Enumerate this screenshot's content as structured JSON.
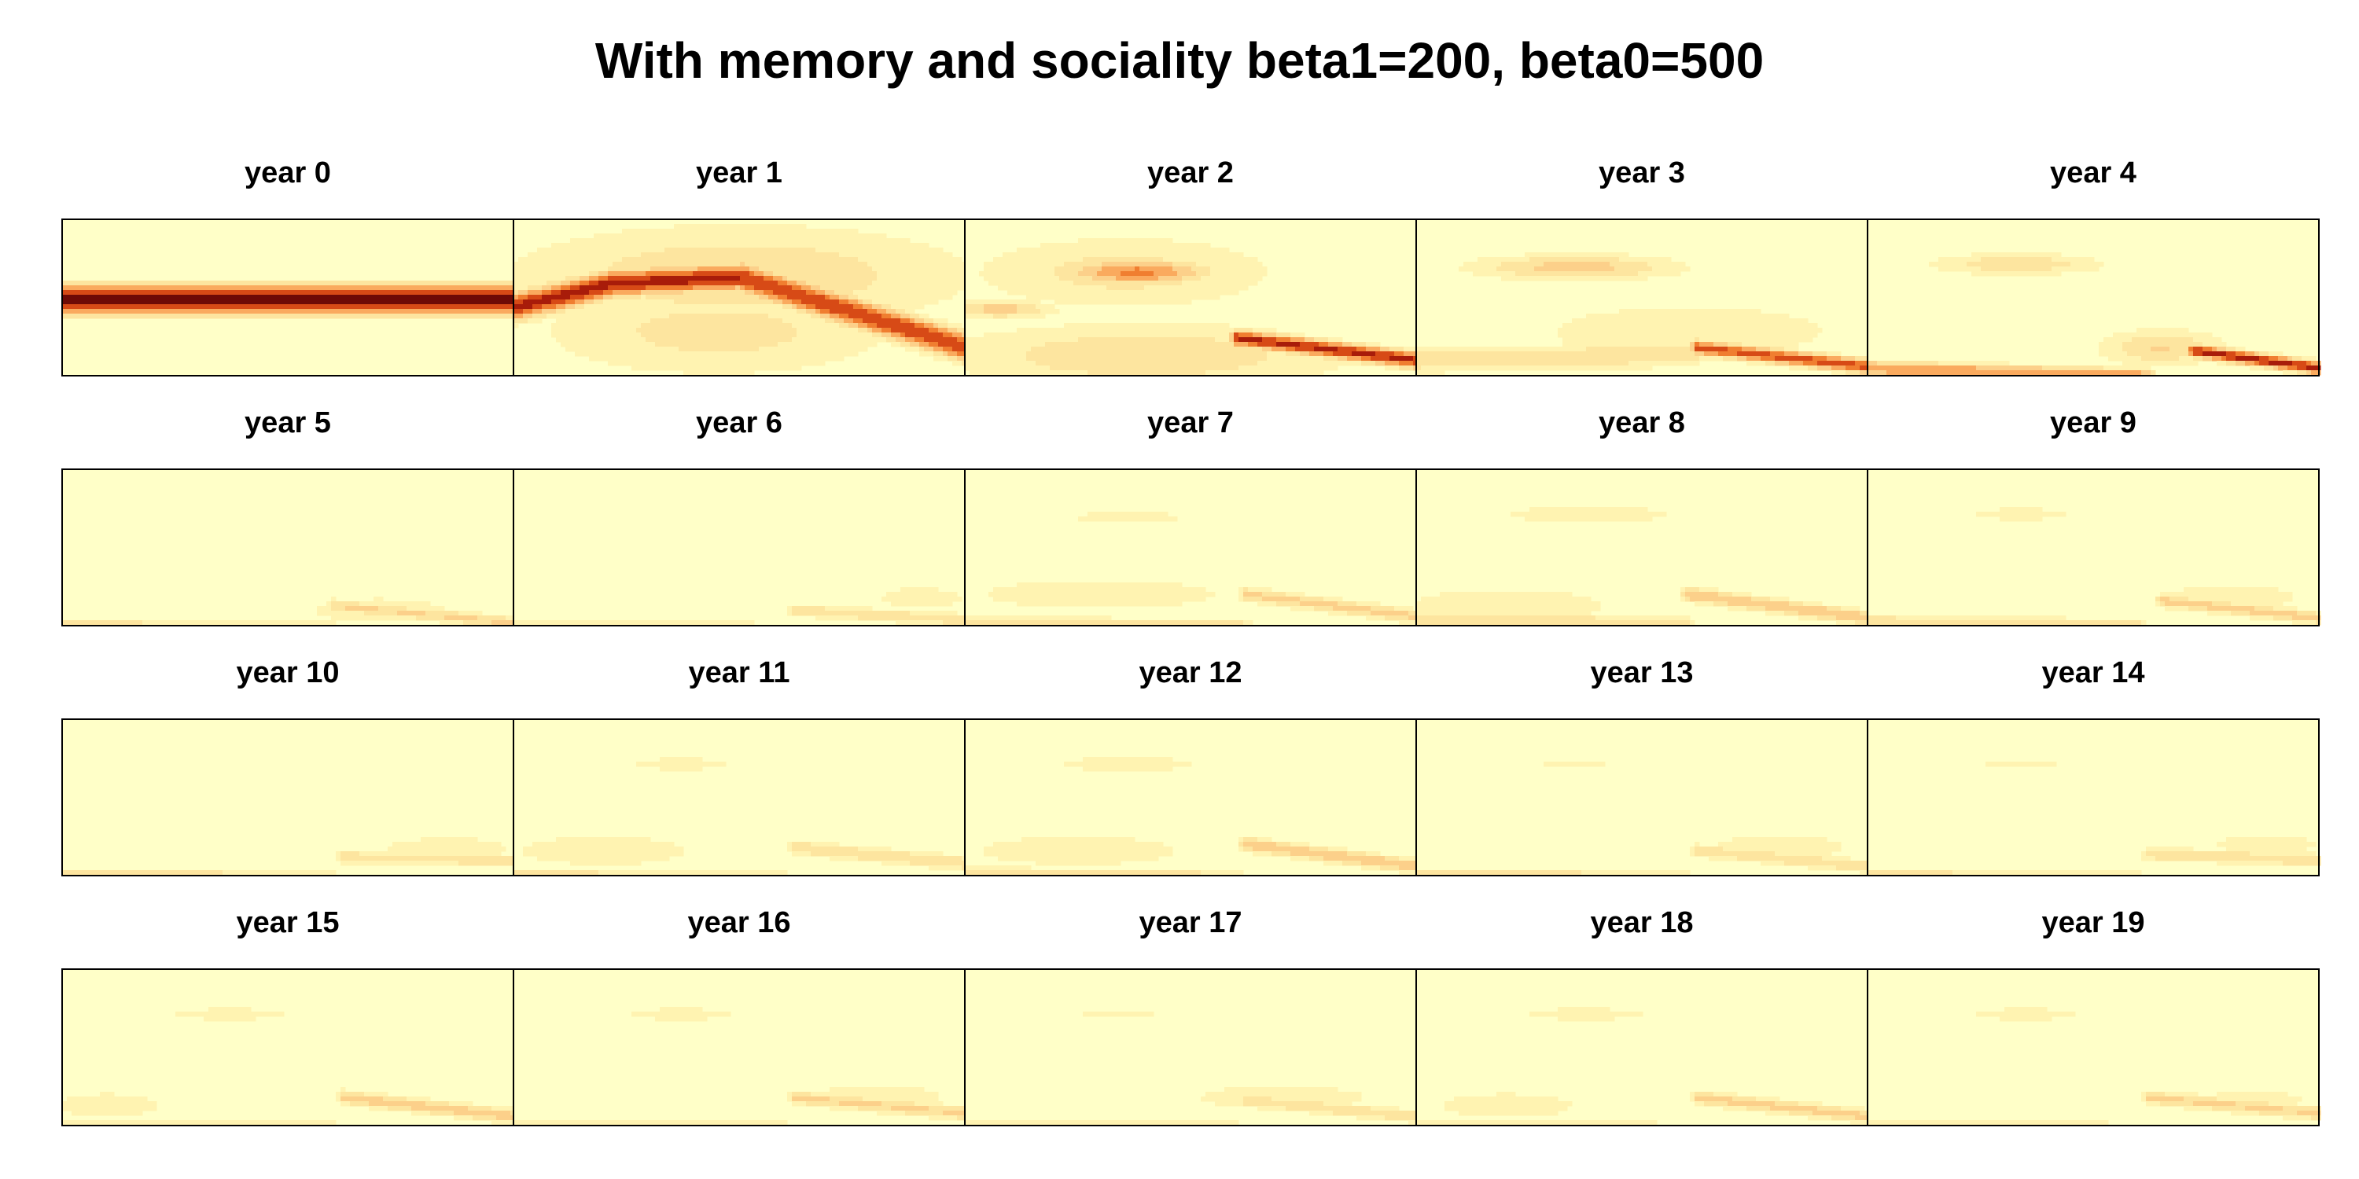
{
  "chart_data": {
    "title": "With memory and sociality beta1=200, beta0=500",
    "type": "heatmap",
    "layout": {
      "rows": 4,
      "cols": 5
    },
    "colormap": [
      "#ffffc8",
      "#fff3b1",
      "#fde59f",
      "#fcd08a",
      "#faaa5e",
      "#f07e30",
      "#d74a16",
      "#a81c0a",
      "#6e0a06"
    ],
    "panels": [
      {
        "title": "year 0",
        "fields": [
          {
            "type": "band",
            "from": 0,
            "to": 1,
            "y0": 0.5,
            "y1": 0.5,
            "width": 0.075,
            "amp": 1.0
          }
        ]
      },
      {
        "title": "year 1",
        "fields": [
          {
            "type": "band",
            "from": 0,
            "to": 0.22,
            "y0": 0.55,
            "y1": 0.4,
            "width": 0.075,
            "amp": 0.85
          },
          {
            "type": "band",
            "from": 0.22,
            "to": 0.5,
            "y0": 0.4,
            "y1": 0.36,
            "width": 0.07,
            "amp": 0.85
          },
          {
            "type": "band",
            "from": 0.5,
            "to": 1.0,
            "y0": 0.36,
            "y1": 0.8,
            "width": 0.08,
            "amp": 0.78
          },
          {
            "type": "blob",
            "x": 0.5,
            "y": 0.35,
            "sx": 0.45,
            "sy": 0.28,
            "amp": 0.22
          },
          {
            "type": "blob",
            "x": 0.45,
            "y": 0.7,
            "sx": 0.35,
            "sy": 0.25,
            "amp": 0.18
          }
        ]
      },
      {
        "title": "year 2",
        "fields": [
          {
            "type": "blob",
            "x": 0.38,
            "y": 0.33,
            "sx": 0.14,
            "sy": 0.07,
            "amp": 0.55
          },
          {
            "type": "band",
            "from": 0.6,
            "to": 1.0,
            "y0": 0.74,
            "y1": 0.88,
            "width": 0.045,
            "amp": 0.82
          },
          {
            "type": "blob",
            "x": 0.08,
            "y": 0.56,
            "sx": 0.1,
            "sy": 0.05,
            "amp": 0.3
          },
          {
            "type": "blob",
            "x": 0.4,
            "y": 0.85,
            "sx": 0.4,
            "sy": 0.18,
            "amp": 0.22
          },
          {
            "type": "blob",
            "x": 0.35,
            "y": 0.33,
            "sx": 0.3,
            "sy": 0.2,
            "amp": 0.18
          }
        ]
      },
      {
        "title": "year 3",
        "fields": [
          {
            "type": "blob",
            "x": 0.35,
            "y": 0.3,
            "sx": 0.2,
            "sy": 0.07,
            "amp": 0.3
          },
          {
            "type": "band",
            "from": 0.62,
            "to": 1.0,
            "y0": 0.8,
            "y1": 0.92,
            "width": 0.04,
            "amp": 0.7
          },
          {
            "type": "band",
            "from": 0,
            "to": 0.62,
            "y0": 0.88,
            "y1": 0.84,
            "width": 0.07,
            "amp": 0.22
          },
          {
            "type": "blob",
            "x": 0.6,
            "y": 0.7,
            "sx": 0.35,
            "sy": 0.18,
            "amp": 0.12
          }
        ]
      },
      {
        "title": "year 4",
        "fields": [
          {
            "type": "blob",
            "x": 0.33,
            "y": 0.28,
            "sx": 0.17,
            "sy": 0.06,
            "amp": 0.22
          },
          {
            "type": "band",
            "from": 0.72,
            "to": 1.0,
            "y0": 0.82,
            "y1": 0.93,
            "width": 0.035,
            "amp": 0.85
          },
          {
            "type": "band",
            "from": 0,
            "to": 0.62,
            "y0": 0.93,
            "y1": 0.98,
            "width": 0.04,
            "amp": 0.5
          },
          {
            "type": "blob",
            "x": 0.65,
            "y": 0.8,
            "sx": 0.12,
            "sy": 0.1,
            "amp": 0.25
          }
        ]
      },
      {
        "title": "year 5",
        "fields": [
          {
            "type": "band",
            "from": 0.6,
            "to": 1.0,
            "y0": 0.85,
            "y1": 0.96,
            "width": 0.035,
            "amp": 0.26
          },
          {
            "type": "band",
            "from": 0,
            "to": 0.6,
            "y0": 0.97,
            "y1": 0.99,
            "width": 0.03,
            "amp": 0.22
          },
          {
            "type": "blob",
            "x": 0.7,
            "y": 0.88,
            "sx": 0.2,
            "sy": 0.1,
            "amp": 0.1
          }
        ]
      },
      {
        "title": "year 6",
        "fields": [
          {
            "type": "band",
            "from": 0.62,
            "to": 1.0,
            "y0": 0.88,
            "y1": 0.94,
            "width": 0.035,
            "amp": 0.22
          },
          {
            "type": "band",
            "from": 0,
            "to": 0.6,
            "y0": 0.98,
            "y1": 0.99,
            "width": 0.03,
            "amp": 0.2
          },
          {
            "type": "blob",
            "x": 0.9,
            "y": 0.8,
            "sx": 0.12,
            "sy": 0.08,
            "amp": 0.1
          }
        ]
      },
      {
        "title": "year 7",
        "fields": [
          {
            "type": "blob",
            "x": 0.36,
            "y": 0.3,
            "sx": 0.12,
            "sy": 0.04,
            "amp": 0.14
          },
          {
            "type": "band",
            "from": 0.62,
            "to": 1.0,
            "y0": 0.78,
            "y1": 0.92,
            "width": 0.04,
            "amp": 0.28
          },
          {
            "type": "band",
            "from": 0,
            "to": 0.62,
            "y0": 0.96,
            "y1": 0.98,
            "width": 0.04,
            "amp": 0.2
          },
          {
            "type": "blob",
            "x": 0.3,
            "y": 0.78,
            "sx": 0.35,
            "sy": 0.12,
            "amp": 0.1
          }
        ]
      },
      {
        "title": "year 8",
        "fields": [
          {
            "type": "blob",
            "x": 0.38,
            "y": 0.28,
            "sx": 0.19,
            "sy": 0.05,
            "amp": 0.14
          },
          {
            "type": "band",
            "from": 0.6,
            "to": 1.0,
            "y0": 0.78,
            "y1": 0.93,
            "width": 0.04,
            "amp": 0.36
          },
          {
            "type": "band",
            "from": 0,
            "to": 0.6,
            "y0": 0.93,
            "y1": 0.97,
            "width": 0.05,
            "amp": 0.2
          },
          {
            "type": "blob",
            "x": 0.2,
            "y": 0.85,
            "sx": 0.25,
            "sy": 0.12,
            "amp": 0.12
          }
        ]
      },
      {
        "title": "year 9",
        "fields": [
          {
            "type": "blob",
            "x": 0.34,
            "y": 0.28,
            "sx": 0.12,
            "sy": 0.04,
            "amp": 0.12
          },
          {
            "type": "band",
            "from": 0.65,
            "to": 1.0,
            "y0": 0.82,
            "y1": 0.93,
            "width": 0.035,
            "amp": 0.3
          },
          {
            "type": "band",
            "from": 0,
            "to": 0.6,
            "y0": 0.95,
            "y1": 0.98,
            "width": 0.04,
            "amp": 0.22
          },
          {
            "type": "blob",
            "x": 0.8,
            "y": 0.8,
            "sx": 0.2,
            "sy": 0.1,
            "amp": 0.1
          }
        ]
      },
      {
        "title": "year 10",
        "fields": [
          {
            "type": "band",
            "from": 0.62,
            "to": 1.0,
            "y0": 0.86,
            "y1": 0.88,
            "width": 0.035,
            "amp": 0.22
          },
          {
            "type": "band",
            "from": 0,
            "to": 0.6,
            "y0": 0.98,
            "y1": 0.99,
            "width": 0.03,
            "amp": 0.38
          },
          {
            "type": "blob",
            "x": 0.85,
            "y": 0.8,
            "sx": 0.18,
            "sy": 0.08,
            "amp": 0.1
          }
        ]
      },
      {
        "title": "year 11",
        "fields": [
          {
            "type": "blob",
            "x": 0.37,
            "y": 0.28,
            "sx": 0.12,
            "sy": 0.04,
            "amp": 0.12
          },
          {
            "type": "band",
            "from": 0.62,
            "to": 1.0,
            "y0": 0.8,
            "y1": 0.9,
            "width": 0.04,
            "amp": 0.24
          },
          {
            "type": "band",
            "from": 0,
            "to": 0.6,
            "y0": 0.98,
            "y1": 0.99,
            "width": 0.03,
            "amp": 0.32
          },
          {
            "type": "blob",
            "x": 0.2,
            "y": 0.82,
            "sx": 0.25,
            "sy": 0.12,
            "amp": 0.1
          }
        ]
      },
      {
        "title": "year 12",
        "fields": [
          {
            "type": "blob",
            "x": 0.36,
            "y": 0.28,
            "sx": 0.15,
            "sy": 0.045,
            "amp": 0.14
          },
          {
            "type": "band",
            "from": 0.62,
            "to": 1.0,
            "y0": 0.78,
            "y1": 0.92,
            "width": 0.04,
            "amp": 0.34
          },
          {
            "type": "band",
            "from": 0,
            "to": 0.6,
            "y0": 0.97,
            "y1": 0.99,
            "width": 0.04,
            "amp": 0.26
          },
          {
            "type": "blob",
            "x": 0.25,
            "y": 0.82,
            "sx": 0.3,
            "sy": 0.12,
            "amp": 0.1
          }
        ]
      },
      {
        "title": "year 13",
        "fields": [
          {
            "type": "blob",
            "x": 0.35,
            "y": 0.28,
            "sx": 0.1,
            "sy": 0.035,
            "amp": 0.1
          },
          {
            "type": "band",
            "from": 0.62,
            "to": 1.0,
            "y0": 0.82,
            "y1": 0.92,
            "width": 0.035,
            "amp": 0.24
          },
          {
            "type": "band",
            "from": 0,
            "to": 0.6,
            "y0": 0.97,
            "y1": 0.99,
            "width": 0.03,
            "amp": 0.3
          },
          {
            "type": "blob",
            "x": 0.8,
            "y": 0.8,
            "sx": 0.2,
            "sy": 0.1,
            "amp": 0.1
          }
        ]
      },
      {
        "title": "year 14",
        "fields": [
          {
            "type": "blob",
            "x": 0.34,
            "y": 0.28,
            "sx": 0.11,
            "sy": 0.035,
            "amp": 0.1
          },
          {
            "type": "band",
            "from": 0.62,
            "to": 1.0,
            "y0": 0.84,
            "y1": 0.88,
            "width": 0.035,
            "amp": 0.24
          },
          {
            "type": "band",
            "from": 0,
            "to": 0.6,
            "y0": 0.98,
            "y1": 0.99,
            "width": 0.03,
            "amp": 0.32
          },
          {
            "type": "blob",
            "x": 0.88,
            "y": 0.78,
            "sx": 0.15,
            "sy": 0.08,
            "amp": 0.1
          }
        ]
      },
      {
        "title": "year 15",
        "fields": [
          {
            "type": "blob",
            "x": 0.37,
            "y": 0.28,
            "sx": 0.14,
            "sy": 0.04,
            "amp": 0.12
          },
          {
            "type": "band",
            "from": 0.62,
            "to": 1.0,
            "y0": 0.8,
            "y1": 0.92,
            "width": 0.04,
            "amp": 0.3
          },
          {
            "type": "band",
            "from": 0,
            "to": 0.6,
            "y0": 0.98,
            "y1": 0.99,
            "width": 0.03,
            "amp": 0.26
          },
          {
            "type": "blob",
            "x": 0.1,
            "y": 0.85,
            "sx": 0.15,
            "sy": 0.1,
            "amp": 0.1
          }
        ]
      },
      {
        "title": "year 16",
        "fields": [
          {
            "type": "blob",
            "x": 0.37,
            "y": 0.28,
            "sx": 0.13,
            "sy": 0.04,
            "amp": 0.12
          },
          {
            "type": "band",
            "from": 0.62,
            "to": 1.0,
            "y0": 0.8,
            "y1": 0.9,
            "width": 0.04,
            "amp": 0.26
          },
          {
            "type": "band",
            "from": 0,
            "to": 0.6,
            "y0": 0.98,
            "y1": 0.99,
            "width": 0.03,
            "amp": 0.22
          },
          {
            "type": "blob",
            "x": 0.8,
            "y": 0.8,
            "sx": 0.2,
            "sy": 0.1,
            "amp": 0.1
          }
        ]
      },
      {
        "title": "year 17",
        "fields": [
          {
            "type": "blob",
            "x": 0.34,
            "y": 0.28,
            "sx": 0.11,
            "sy": 0.035,
            "amp": 0.1
          },
          {
            "type": "band",
            "from": 0.62,
            "to": 1.0,
            "y0": 0.82,
            "y1": 0.92,
            "width": 0.035,
            "amp": 0.24
          },
          {
            "type": "band",
            "from": 0,
            "to": 0.6,
            "y0": 0.98,
            "y1": 0.99,
            "width": 0.03,
            "amp": 0.22
          },
          {
            "type": "blob",
            "x": 0.7,
            "y": 0.8,
            "sx": 0.25,
            "sy": 0.1,
            "amp": 0.1
          }
        ]
      },
      {
        "title": "year 18",
        "fields": [
          {
            "type": "blob",
            "x": 0.37,
            "y": 0.28,
            "sx": 0.15,
            "sy": 0.04,
            "amp": 0.12
          },
          {
            "type": "band",
            "from": 0.62,
            "to": 1.0,
            "y0": 0.8,
            "y1": 0.92,
            "width": 0.04,
            "amp": 0.28
          },
          {
            "type": "band",
            "from": 0,
            "to": 0.6,
            "y0": 0.98,
            "y1": 0.99,
            "width": 0.03,
            "amp": 0.2
          },
          {
            "type": "blob",
            "x": 0.2,
            "y": 0.85,
            "sx": 0.2,
            "sy": 0.1,
            "amp": 0.1
          }
        ]
      },
      {
        "title": "year 19",
        "fields": [
          {
            "type": "blob",
            "x": 0.35,
            "y": 0.28,
            "sx": 0.13,
            "sy": 0.04,
            "amp": 0.12
          },
          {
            "type": "band",
            "from": 0.62,
            "to": 1.0,
            "y0": 0.8,
            "y1": 0.9,
            "width": 0.04,
            "amp": 0.26
          },
          {
            "type": "band",
            "from": 0,
            "to": 0.6,
            "y0": 0.98,
            "y1": 0.99,
            "width": 0.03,
            "amp": 0.2
          },
          {
            "type": "blob",
            "x": 0.85,
            "y": 0.82,
            "sx": 0.15,
            "sy": 0.08,
            "amp": 0.1
          }
        ]
      }
    ]
  }
}
